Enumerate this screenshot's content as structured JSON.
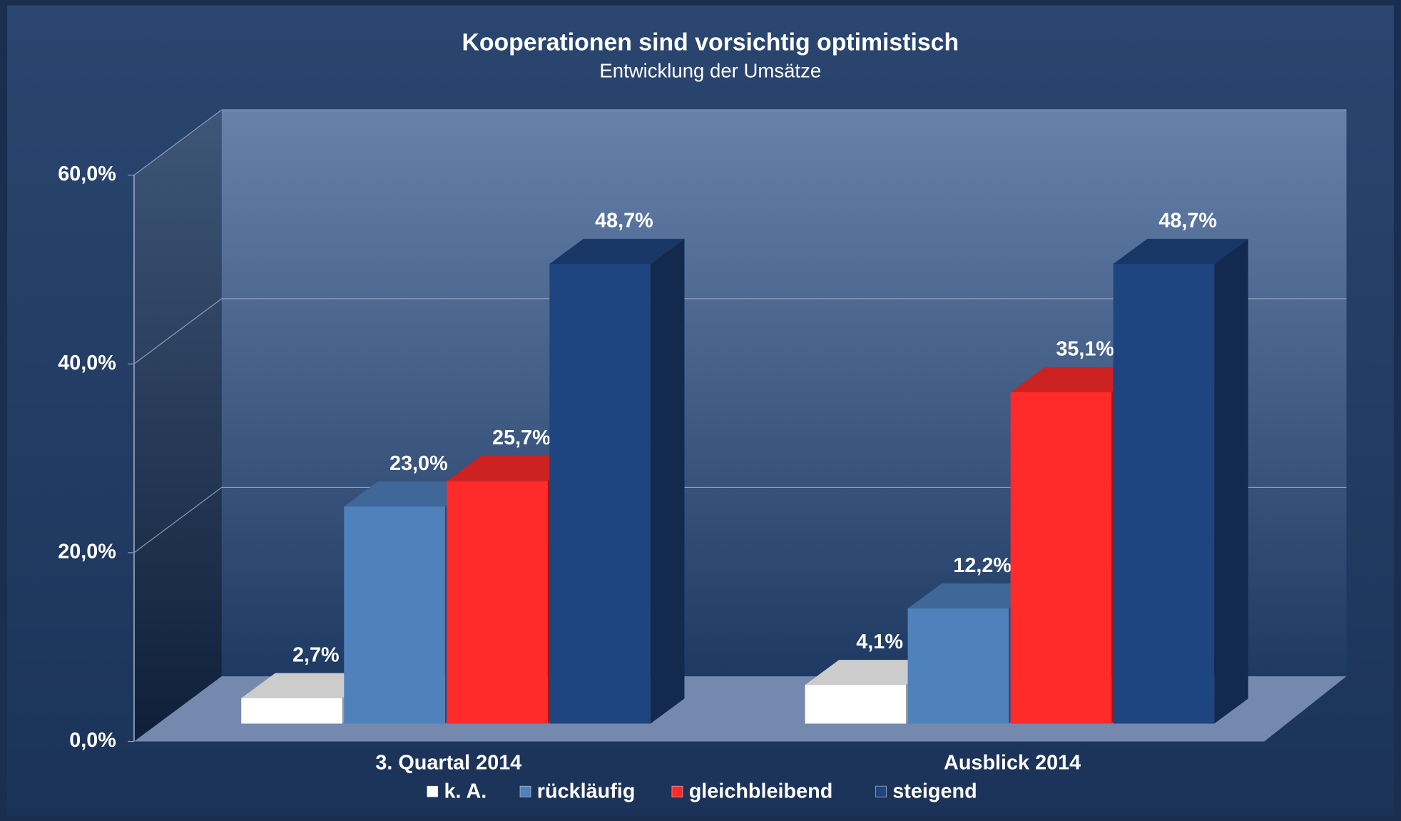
{
  "chart_data": {
    "type": "bar3d",
    "title": "Kooperationen sind vorsichtig optimistisch",
    "subtitle": "Entwicklung der Umsätze",
    "categories": [
      "3. Quartal 2014",
      "Ausblick 2014"
    ],
    "series": [
      {
        "name": "k. A.",
        "color": "#ffffff",
        "values": [
          2.7,
          4.1
        ],
        "value_labels": [
          "2,7%",
          "4,1%"
        ]
      },
      {
        "name": "rückläufig",
        "color": "#4f81bd",
        "values": [
          23.0,
          12.2
        ],
        "value_labels": [
          "23,0%",
          "12,2%"
        ]
      },
      {
        "name": "gleichbleibend",
        "color": "#ff2a2a",
        "values": [
          25.7,
          35.1
        ],
        "value_labels": [
          "25,7%",
          "35,1%"
        ]
      },
      {
        "name": "steigend",
        "color": "#1f4580",
        "values": [
          48.7,
          48.7
        ],
        "value_labels": [
          "48,7%",
          "48,7%"
        ]
      }
    ],
    "ylim": [
      0,
      60
    ],
    "yticks": [
      {
        "value": 0,
        "label": "0,0%"
      },
      {
        "value": 20,
        "label": "20,0%"
      },
      {
        "value": 40,
        "label": "40,0%"
      },
      {
        "value": 60,
        "label": "60,0%"
      }
    ],
    "grid": true,
    "legend": "bottom"
  }
}
